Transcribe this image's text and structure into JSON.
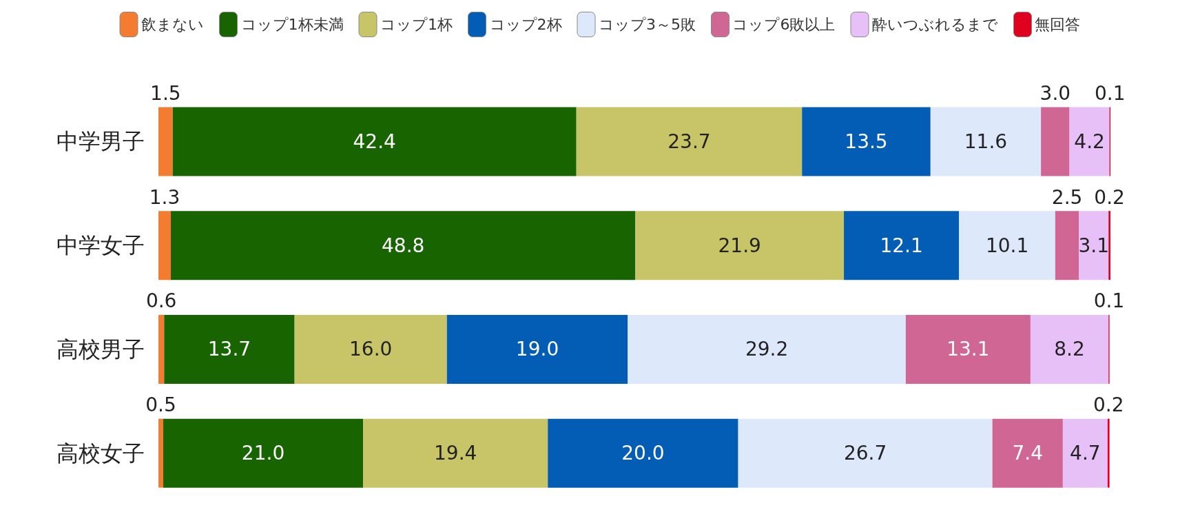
{
  "chart_data": {
    "type": "bar",
    "orientation": "horizontal",
    "stacked": true,
    "categories": [
      "中学男子",
      "中学女子",
      "高校男子",
      "高校女子"
    ],
    "series": [
      {
        "name": "飲まない",
        "color": "#f47c30",
        "values": [
          1.5,
          1.3,
          0.6,
          0.5
        ],
        "value_labels": [
          "1.5",
          "1.3",
          "0.6",
          "0.5"
        ]
      },
      {
        "name": "コップ1杯未満",
        "color": "#176400",
        "values": [
          42.4,
          48.8,
          13.7,
          21.0
        ],
        "value_labels": [
          "42.4",
          "48.8",
          "13.7",
          "21.0"
        ]
      },
      {
        "name": "コップ1杯",
        "color": "#c8c468",
        "values": [
          23.7,
          21.9,
          16.0,
          19.4
        ],
        "value_labels": [
          "23.7",
          "21.9",
          "16.0",
          "19.4"
        ]
      },
      {
        "name": "コップ2杯",
        "color": "#035db5",
        "values": [
          13.5,
          12.1,
          19.0,
          20.0
        ],
        "value_labels": [
          "13.5",
          "12.1",
          "19.0",
          "20.0"
        ]
      },
      {
        "name": "コップ3～5敗",
        "color": "#dde8fb",
        "values": [
          11.6,
          10.1,
          29.2,
          26.7
        ],
        "value_labels": [
          "11.6",
          "10.1",
          "29.2",
          "26.7"
        ]
      },
      {
        "name": "コップ6敗以上",
        "color": "#d06693",
        "values": [
          3.0,
          2.5,
          13.1,
          7.4
        ],
        "value_labels": [
          "3.0",
          "2.5",
          "13.1",
          "7.4"
        ]
      },
      {
        "name": "酔いつぶれるまで",
        "color": "#e8c0f8",
        "values": [
          4.2,
          3.1,
          8.2,
          4.7
        ],
        "value_labels": [
          "4.2",
          "3.1",
          "8.2",
          "4.7"
        ]
      },
      {
        "name": "無回答",
        "color": "#e0001f",
        "values": [
          0.1,
          0.2,
          0.1,
          0.2
        ],
        "value_labels": [
          "0.1",
          "0.2",
          "0.1",
          "0.2"
        ]
      }
    ],
    "xlim": [
      0,
      100
    ],
    "tick_labels": "y",
    "legend": "top",
    "grid": false
  }
}
